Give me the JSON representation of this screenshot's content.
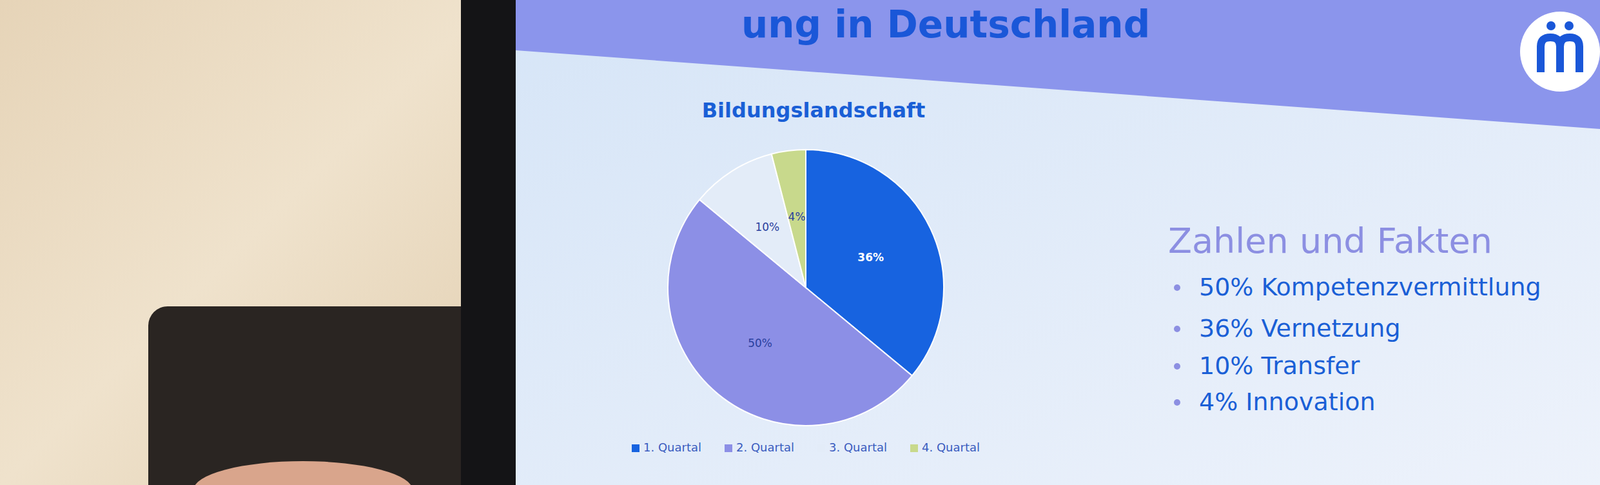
{
  "slide": {
    "heading": "ung in Deutschland",
    "facts_title": "Zahlen und Fakten",
    "facts": [
      "50% Kompetenzvermittlung",
      "36% Vernetzung",
      "10% Transfer",
      "4% Innovation"
    ]
  },
  "chart_data": {
    "type": "pie",
    "title": "Bildungslandschaft",
    "categories": [
      "1. Quartal",
      "2. Quartal",
      "3. Quartal",
      "4. Quartal"
    ],
    "values": [
      36,
      50,
      10,
      4
    ],
    "value_labels": [
      "36%",
      "50%",
      "10%",
      "4%"
    ],
    "colors": [
      "#1763e0",
      "#8c8fe6",
      "#e3ecf8",
      "#c8d98c"
    ],
    "data_labels": true,
    "legend": "bottom"
  }
}
